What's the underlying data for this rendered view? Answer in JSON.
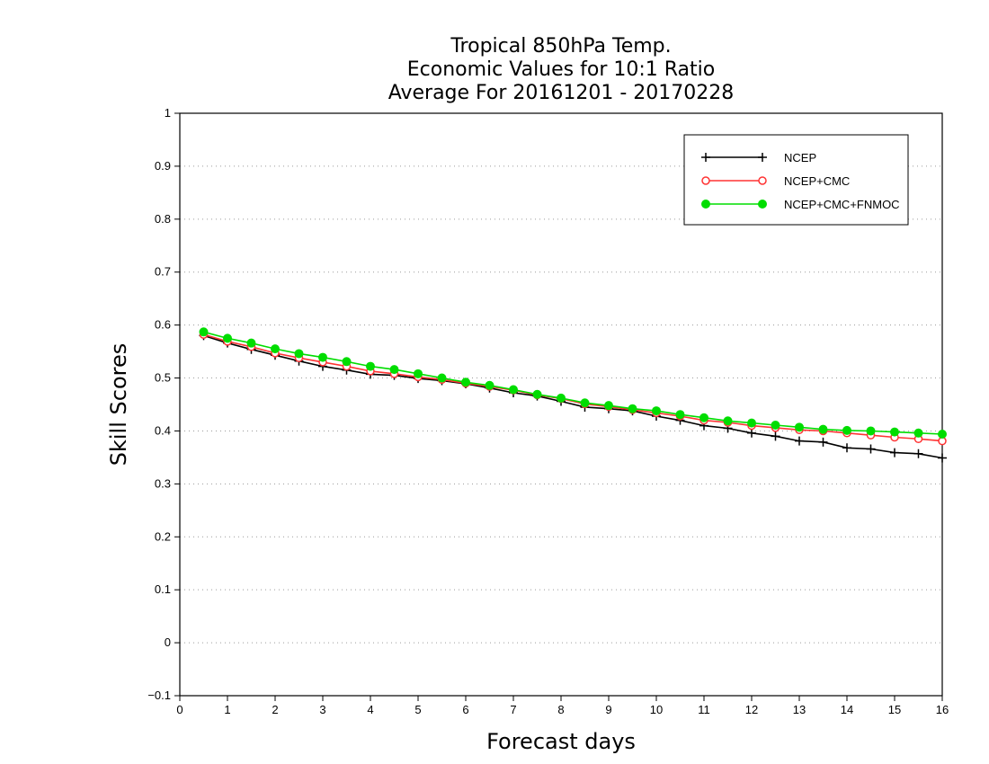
{
  "chart_data": {
    "type": "line",
    "title_lines": [
      "Tropical 850hPa Temp.",
      "Economic Values for 10:1 Ratio",
      "Average For 20161201 - 20170228"
    ],
    "xlabel": "Forecast days",
    "ylabel": "Skill Scores",
    "xlim": [
      0,
      16
    ],
    "ylim": [
      -0.1,
      1
    ],
    "x_ticks": [
      0,
      1,
      2,
      3,
      4,
      5,
      6,
      7,
      8,
      9,
      10,
      11,
      12,
      13,
      14,
      15,
      16
    ],
    "y_ticks": [
      -0.1,
      0,
      0.1,
      0.2,
      0.3,
      0.4,
      0.5,
      0.6,
      0.7,
      0.8,
      0.9,
      1
    ],
    "y_tick_labels": [
      "−0.1",
      "0",
      "0.1",
      "0.2",
      "0.3",
      "0.4",
      "0.5",
      "0.6",
      "0.7",
      "0.8",
      "0.9",
      "1"
    ],
    "grid": "horizontal dotted",
    "legend_position": "top-right",
    "x": [
      0.5,
      1,
      1.5,
      2,
      2.5,
      3,
      3.5,
      4,
      4.5,
      5,
      5.5,
      6,
      6.5,
      7,
      7.5,
      8,
      8.5,
      9,
      9.5,
      10,
      10.5,
      11,
      11.5,
      12,
      12.5,
      13,
      13.5,
      14,
      14.5,
      15,
      15.5,
      16
    ],
    "series": [
      {
        "name": "NCEP",
        "color": "#000000",
        "marker": "plus",
        "values": [
          0.58,
          0.566,
          0.554,
          0.543,
          0.532,
          0.522,
          0.515,
          0.507,
          0.505,
          0.499,
          0.495,
          0.489,
          0.481,
          0.472,
          0.466,
          0.456,
          0.445,
          0.442,
          0.438,
          0.428,
          0.42,
          0.41,
          0.405,
          0.396,
          0.39,
          0.381,
          0.379,
          0.368,
          0.366,
          0.359,
          0.357,
          0.349
        ]
      },
      {
        "name": "NCEP+CMC",
        "color": "#ff3333",
        "marker": "open-circle",
        "values": [
          0.582,
          0.569,
          0.559,
          0.547,
          0.538,
          0.53,
          0.522,
          0.513,
          0.508,
          0.502,
          0.497,
          0.49,
          0.484,
          0.477,
          0.468,
          0.461,
          0.451,
          0.446,
          0.44,
          0.434,
          0.428,
          0.42,
          0.416,
          0.41,
          0.406,
          0.402,
          0.4,
          0.396,
          0.392,
          0.388,
          0.385,
          0.381
        ]
      },
      {
        "name": "NCEP+CMC+FNMOC",
        "color": "#00dd00",
        "marker": "filled-circle",
        "values": [
          0.587,
          0.575,
          0.566,
          0.555,
          0.546,
          0.539,
          0.531,
          0.522,
          0.516,
          0.508,
          0.5,
          0.492,
          0.486,
          0.478,
          0.469,
          0.462,
          0.453,
          0.448,
          0.442,
          0.438,
          0.431,
          0.425,
          0.419,
          0.415,
          0.411,
          0.407,
          0.403,
          0.401,
          0.4,
          0.398,
          0.396,
          0.394
        ]
      }
    ]
  }
}
